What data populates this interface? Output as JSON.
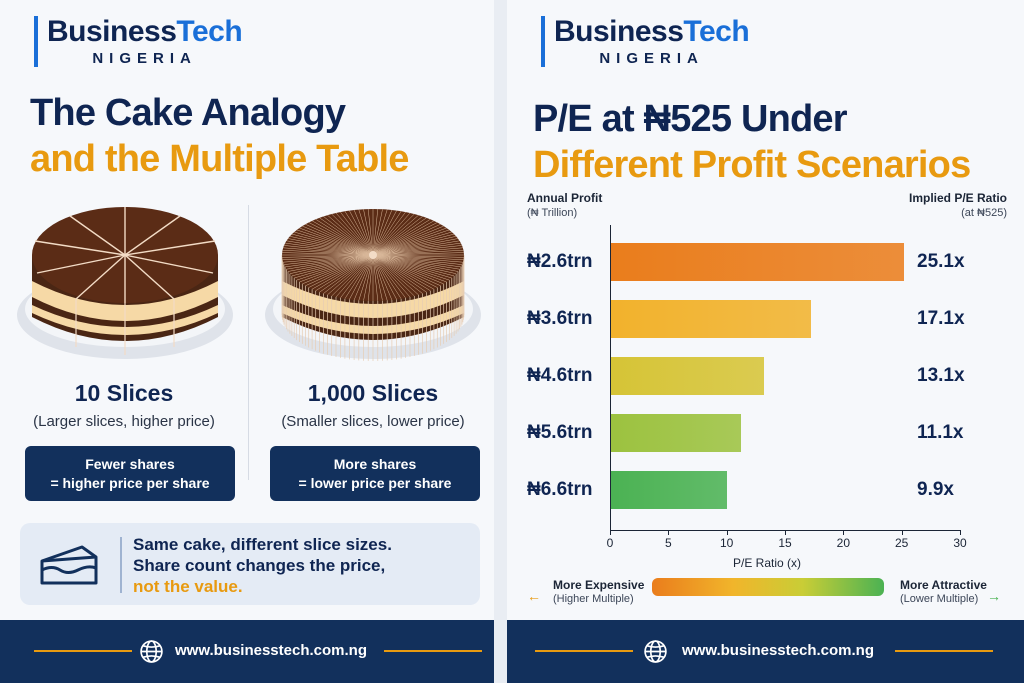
{
  "brand": {
    "name_a": "Business",
    "name_b": "Tech",
    "sub": "NIGERIA"
  },
  "left": {
    "title_line1": "The Cake Analogy",
    "title_line2": "and the Multiple Table",
    "cake_10": {
      "title": "10 Slices",
      "sub": "(Larger slices, higher price)",
      "box_line1": "Fewer shares",
      "box_line2": "= higher price per share"
    },
    "cake_1000": {
      "title": "1,000 Slices",
      "sub": "(Smaller slices, lower price)",
      "box_line1": "More shares",
      "box_line2": "= lower price per share"
    },
    "note": {
      "line1": "Same cake, different slice sizes.",
      "line2": "Share count changes the price,",
      "line3": "not the value."
    }
  },
  "right": {
    "title_line1": "P/E at ₦525 Under",
    "title_line2": "Different Profit Scenarios",
    "y_head": "Annual Profit",
    "y_head_sub": "(₦ Trillion)",
    "value_head": "Implied P/E Ratio",
    "value_head_sub": "(at ₦525)",
    "legend": {
      "left": "More Expensive",
      "left_sub": "(Higher Multiple)",
      "right": "More Attractive",
      "right_sub": "(Lower Multiple)"
    }
  },
  "chart_data": {
    "type": "bar",
    "orientation": "horizontal",
    "title": "P/E at ₦525 Under Different Profit Scenarios",
    "ylabel": "Annual Profit",
    "xlabel": "P/E Ratio (x)",
    "xlim": [
      0,
      30
    ],
    "xticks": [
      "0",
      "5",
      "10",
      "15",
      "20",
      "25",
      "30"
    ],
    "categories": [
      "₦2.6trn",
      "₦3.6trn",
      "₦4.6trn",
      "₦5.6trn",
      "₦6.6trn"
    ],
    "values": [
      25.1,
      17.1,
      13.1,
      11.1,
      9.9
    ],
    "value_labels": [
      "25.1x",
      "17.1x",
      "13.1x",
      "11.1x",
      "9.9x"
    ],
    "colors": [
      "#ea7d1c",
      "#f2b22c",
      "#d6c436",
      "#9cc23f",
      "#4bb253"
    ],
    "grid": false
  },
  "footer": {
    "url": "www.businesstech.com.ng"
  },
  "colors": {
    "navy": "#0f2552",
    "accent": "#e89a10",
    "blue": "#1a6fd8",
    "footer": "#12305c"
  }
}
